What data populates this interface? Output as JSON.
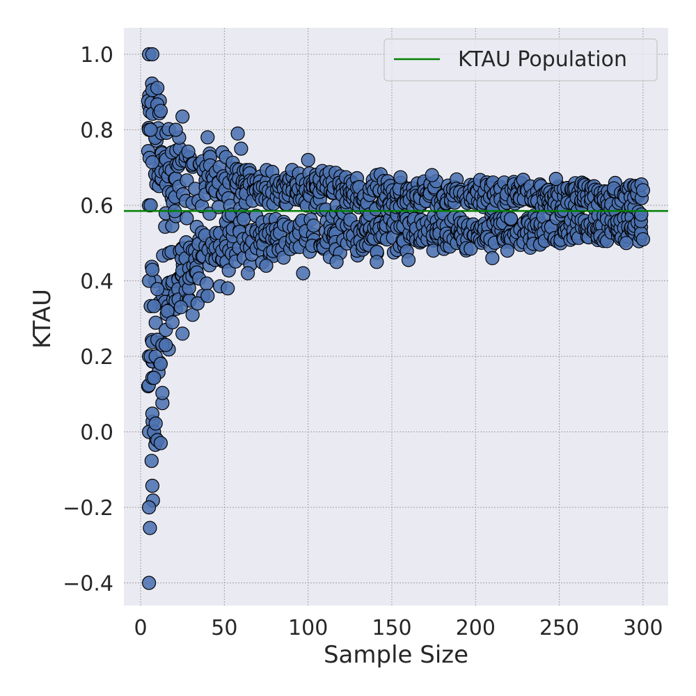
{
  "chart_data": {
    "type": "scatter",
    "title": "",
    "xlabel": "Sample Size",
    "ylabel": "KTAU",
    "xlim": [
      -10,
      315
    ],
    "ylim": [
      -0.46,
      1.07
    ],
    "xticks": [
      0,
      50,
      100,
      150,
      200,
      250,
      300
    ],
    "yticks": [
      -0.4,
      -0.2,
      0.0,
      0.2,
      0.4,
      0.6,
      0.8,
      1.0
    ],
    "ytick_labels": [
      "−0.4",
      "−0.2",
      "0.0",
      "0.2",
      "0.4",
      "0.6",
      "0.8",
      "1.0"
    ],
    "xtick_labels": [
      "0",
      "50",
      "100",
      "150",
      "200",
      "250",
      "300"
    ],
    "grid": true,
    "legend_position": "top-right",
    "population_line": {
      "label": "KTAU Population",
      "y": 0.585
    },
    "series": [
      {
        "marker_color": "#4C72B0",
        "envelope": {
          "x": [
            5,
            7,
            10,
            13,
            16,
            20,
            25,
            30,
            40,
            50,
            60,
            75,
            90,
            100,
            120,
            150,
            200,
            250,
            300
          ],
          "upper": [
            1.0,
            1.0,
            0.91,
            0.85,
            0.82,
            0.8,
            0.79,
            0.77,
            0.75,
            0.74,
            0.72,
            0.71,
            0.7,
            0.7,
            0.69,
            0.68,
            0.67,
            0.67,
            0.66
          ],
          "lower": [
            -0.4,
            -0.2,
            -0.02,
            0.05,
            0.2,
            0.25,
            0.3,
            0.33,
            0.36,
            0.39,
            0.42,
            0.44,
            0.45,
            0.45,
            0.46,
            0.47,
            0.48,
            0.49,
            0.5
          ]
        },
        "points": [
          {
            "x": 5,
            "y": -0.4
          },
          {
            "x": 5,
            "y": -0.2
          },
          {
            "x": 5,
            "y": 0.0
          },
          {
            "x": 5,
            "y": 0.2
          },
          {
            "x": 5,
            "y": 0.4
          },
          {
            "x": 5,
            "y": 0.6
          },
          {
            "x": 5,
            "y": 0.8
          },
          {
            "x": 5,
            "y": 1.0
          },
          {
            "x": 6,
            "y": 0.333
          },
          {
            "x": 6,
            "y": 0.6
          },
          {
            "x": 6,
            "y": 0.2
          },
          {
            "x": 6,
            "y": 0.8
          },
          {
            "x": 7,
            "y": 1.0
          },
          {
            "x": 7,
            "y": -0.143
          },
          {
            "x": 7,
            "y": 0.048
          },
          {
            "x": 7,
            "y": 0.143
          },
          {
            "x": 7,
            "y": 0.714
          },
          {
            "x": 7,
            "y": 0.905
          },
          {
            "x": 7,
            "y": 0.238
          },
          {
            "x": 7,
            "y": 0.429
          },
          {
            "x": 8,
            "y": 0.0
          },
          {
            "x": 8,
            "y": 0.143
          },
          {
            "x": 8,
            "y": 0.333
          },
          {
            "x": 9,
            "y": 0.022
          },
          {
            "x": 9,
            "y": 0.2
          },
          {
            "x": 9,
            "y": 0.289
          },
          {
            "x": 10,
            "y": 0.911
          },
          {
            "x": 10,
            "y": -0.022
          },
          {
            "x": 10,
            "y": 0.244
          },
          {
            "x": 10,
            "y": 0.378
          },
          {
            "x": 10,
            "y": 0.867
          },
          {
            "x": 12,
            "y": -0.03
          },
          {
            "x": 12,
            "y": 0.18
          },
          {
            "x": 12,
            "y": 0.85
          },
          {
            "x": 13,
            "y": 0.076
          },
          {
            "x": 13,
            "y": 0.103
          },
          {
            "x": 13,
            "y": 0.23
          },
          {
            "x": 15,
            "y": 0.23
          },
          {
            "x": 15,
            "y": 0.27
          },
          {
            "x": 16,
            "y": 0.32
          },
          {
            "x": 19,
            "y": 0.29
          },
          {
            "x": 21,
            "y": 0.8
          },
          {
            "x": 25,
            "y": 0.26
          },
          {
            "x": 24,
            "y": 0.33
          },
          {
            "x": 25,
            "y": 0.835
          },
          {
            "x": 31,
            "y": 0.31
          },
          {
            "x": 34,
            "y": 0.34
          },
          {
            "x": 40,
            "y": 0.36
          },
          {
            "x": 40,
            "y": 0.78
          },
          {
            "x": 52,
            "y": 0.38
          },
          {
            "x": 58,
            "y": 0.79
          },
          {
            "x": 60,
            "y": 0.75
          },
          {
            "x": 64,
            "y": 0.42
          },
          {
            "x": 75,
            "y": 0.44
          },
          {
            "x": 97,
            "y": 0.42
          },
          {
            "x": 100,
            "y": 0.72
          },
          {
            "x": 117,
            "y": 0.45
          },
          {
            "x": 141,
            "y": 0.45
          },
          {
            "x": 160,
            "y": 0.455
          },
          {
            "x": 174,
            "y": 0.68
          },
          {
            "x": 210,
            "y": 0.46
          },
          {
            "x": 219,
            "y": 0.48
          },
          {
            "x": 248,
            "y": 0.67
          },
          {
            "x": 290,
            "y": 0.5
          },
          {
            "x": 300,
            "y": 0.51
          },
          {
            "x": 300,
            "y": 0.64
          }
        ]
      }
    ]
  }
}
